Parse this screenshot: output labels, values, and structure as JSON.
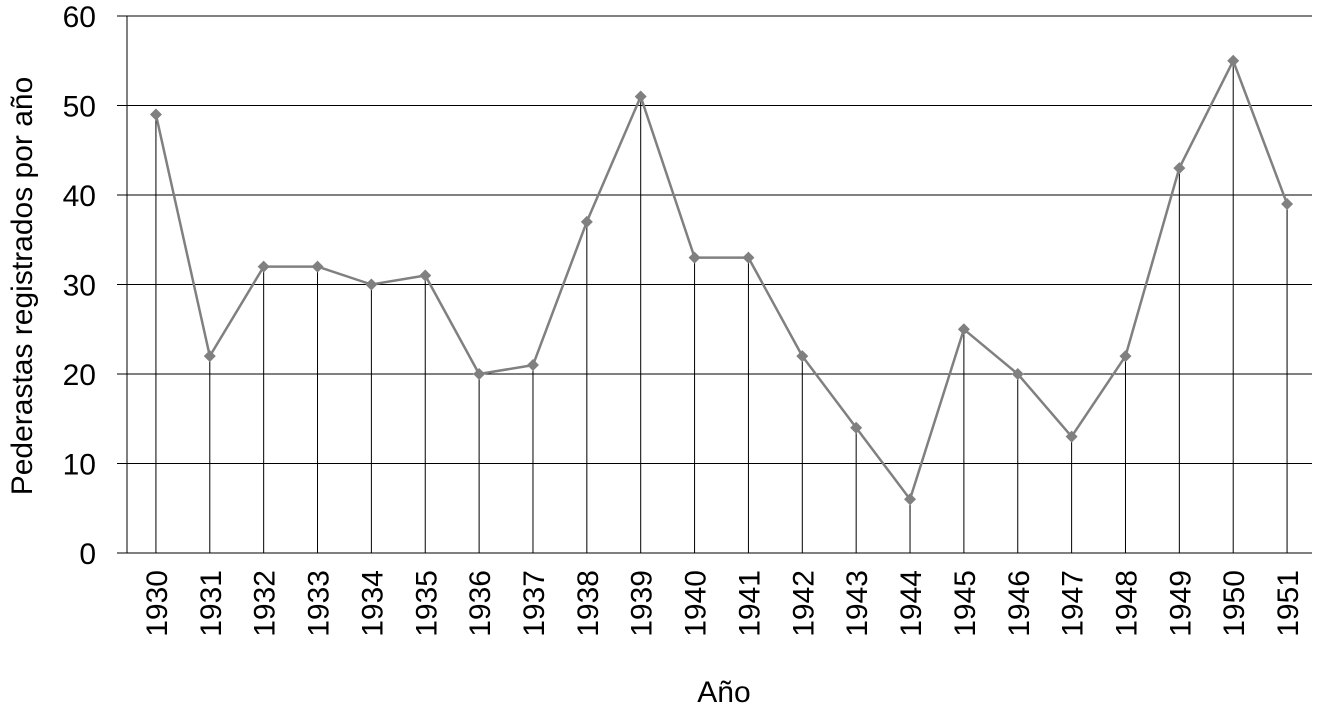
{
  "chart_data": {
    "type": "line",
    "title": "",
    "xlabel": "Año",
    "ylabel": "Pederastas registrados por año",
    "ylim": [
      0,
      60
    ],
    "yticks": [
      0,
      10,
      20,
      30,
      40,
      50,
      60
    ],
    "grid": true,
    "legend": "none",
    "x": [
      "1930",
      "1931",
      "1932",
      "1933",
      "1934",
      "1935",
      "1936",
      "1937",
      "1938",
      "1939",
      "1940",
      "1941",
      "1942",
      "1943",
      "1944",
      "1945",
      "1946",
      "1947",
      "1948",
      "1949",
      "1950",
      "1951"
    ],
    "series": [
      {
        "values": [
          49,
          22,
          32,
          32,
          30,
          31,
          20,
          21,
          37,
          51,
          33,
          33,
          22,
          14,
          6,
          25,
          20,
          13,
          22,
          43,
          55,
          39
        ],
        "color": "#808080",
        "marker": "diamond",
        "drop_lines": true
      }
    ]
  }
}
